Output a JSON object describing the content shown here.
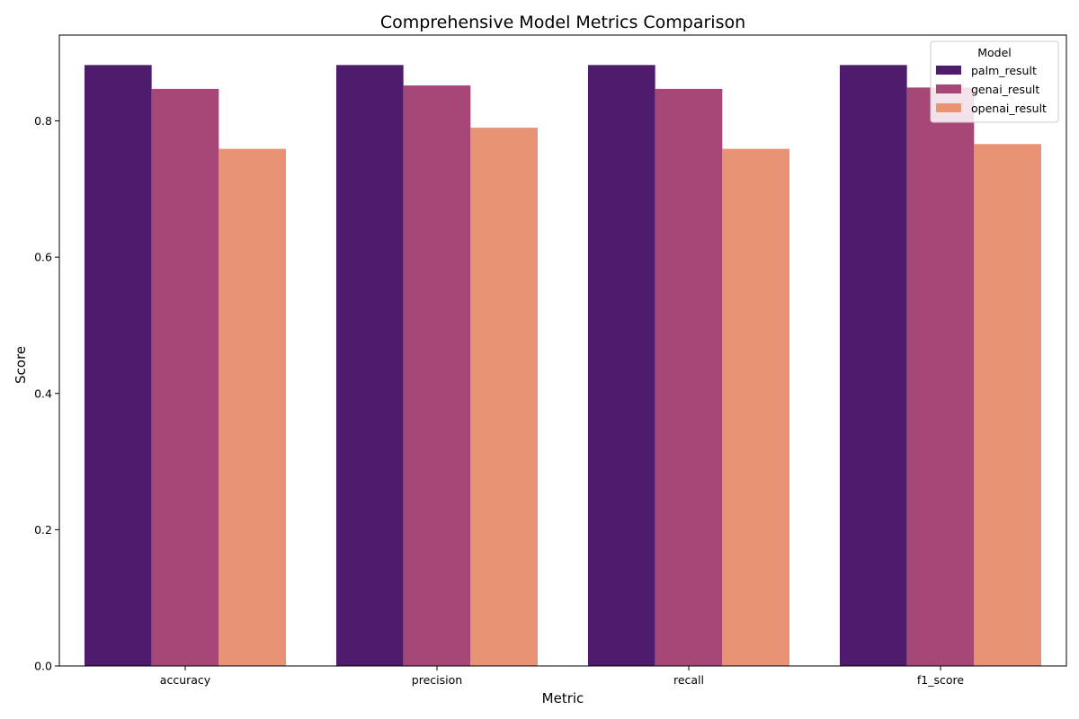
{
  "chart_data": {
    "type": "bar",
    "title": "Comprehensive Model Metrics Comparison",
    "xlabel": "Metric",
    "ylabel": "Score",
    "categories": [
      "accuracy",
      "precision",
      "recall",
      "f1_score"
    ],
    "series": [
      {
        "name": "palm_result",
        "color": "#4f1c6d",
        "values": [
          0.882,
          0.882,
          0.882,
          0.882
        ]
      },
      {
        "name": "genai_result",
        "color": "#a74778",
        "values": [
          0.847,
          0.852,
          0.847,
          0.849
        ]
      },
      {
        "name": "openai_result",
        "color": "#e89374",
        "values": [
          0.759,
          0.79,
          0.759,
          0.766
        ]
      }
    ],
    "ylim": [
      0,
      0.926
    ],
    "yticks": [
      "0.0",
      "0.2",
      "0.4",
      "0.6",
      "0.8"
    ],
    "grid": false,
    "legend": {
      "title": "Model",
      "placement": "top-right"
    }
  }
}
